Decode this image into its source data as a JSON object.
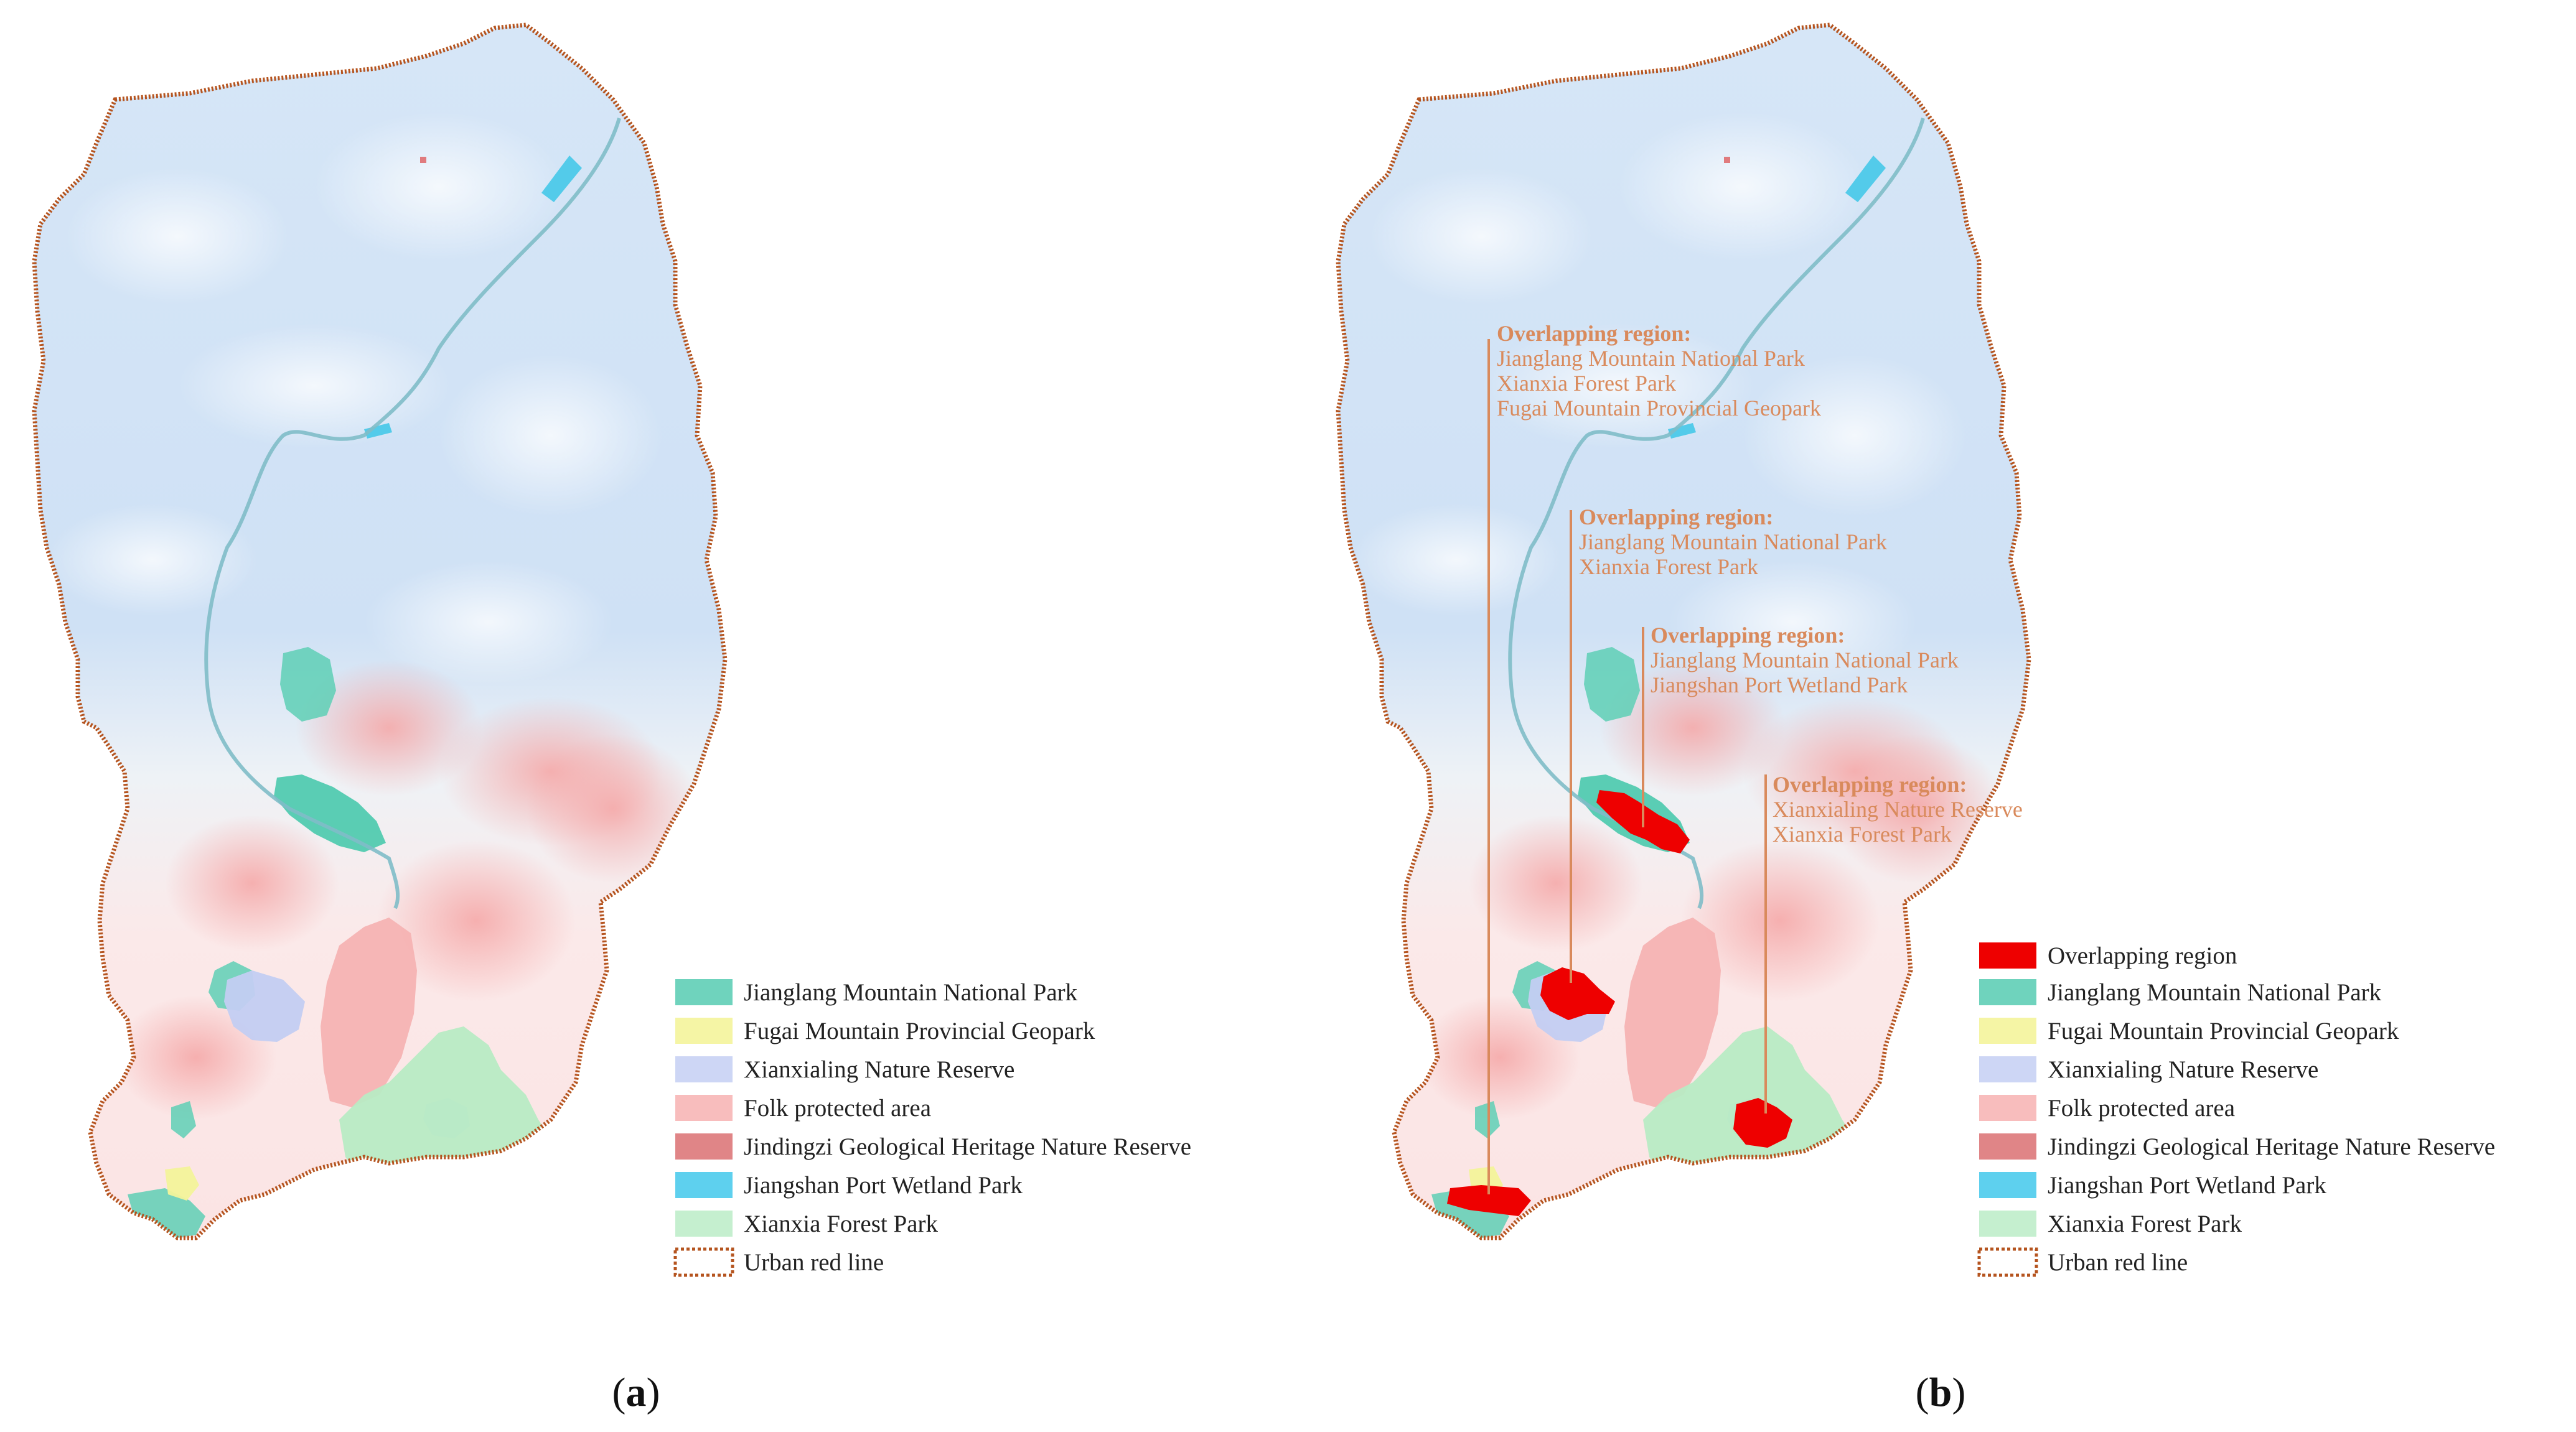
{
  "colors": {
    "boundary": "#b5541f",
    "river": "#7fbcc8",
    "relief_blue": "#cfe2f6",
    "relief_pink": "#f8c9c9",
    "jianglang": "#5ecfb5",
    "fugai": "#f3f39a",
    "xianxialing": "#c3cdf2",
    "folk": "#f6b3b3",
    "jindingzi": "#e07b7e",
    "jiangshan": "#45c8e8",
    "xianxia": "#b8ebc4",
    "overlap": "#ee0000",
    "annotation": "#d98a5c"
  },
  "legend_items": [
    {
      "key": "overlap",
      "label": "Overlapping region",
      "color": "#ee0000",
      "border": "none"
    },
    {
      "key": "jianglang",
      "label": "Jianglang Mountain National Park",
      "color": "#6fd3bd",
      "border": "none"
    },
    {
      "key": "fugai",
      "label": "Fugai Mountain Provincial Geopark",
      "color": "#f5f5a5",
      "border": "none"
    },
    {
      "key": "xianxialing",
      "label": "Xianxialing Nature Reserve",
      "color": "#cdd6f5",
      "border": "none"
    },
    {
      "key": "folk",
      "label": "Folk protected area",
      "color": "#f8bdbd",
      "border": "none"
    },
    {
      "key": "jindingzi",
      "label": "Jindingzi Geological Heritage Nature Reserve",
      "color": "#e08587",
      "border": "none"
    },
    {
      "key": "jiangshan",
      "label": "Jiangshan Port Wetland Park",
      "color": "#5ed0ee",
      "border": "none"
    },
    {
      "key": "xianxia",
      "label": "Xianxia Forest Park",
      "color": "#c5efcf",
      "border": "none"
    },
    {
      "key": "redline",
      "label": "Urban red line",
      "color": "#ffffff",
      "border": "dashed"
    }
  ],
  "annotations": [
    {
      "title": "Overlapping region:",
      "lines": [
        "Jianglang Mountain National Park",
        "Xianxia Forest Park",
        "Fugai Mountain Provincial Geopark"
      ]
    },
    {
      "title": "Overlapping region:",
      "lines": [
        "Jianglang Mountain National Park",
        "Xianxia Forest Park"
      ]
    },
    {
      "title": "Overlapping region:",
      "lines": [
        "Jianglang Mountain National Park",
        "Jiangshan Port Wetland Park"
      ]
    },
    {
      "title": "Overlapping region:",
      "lines": [
        "Xianxialing Nature Reserve",
        "Xianxia Forest Park"
      ]
    }
  ],
  "panels": [
    {
      "key": "a",
      "label": {
        "open": "(",
        "letter": "a",
        "close": ")"
      },
      "map_icon": "county-map-icon"
    },
    {
      "key": "b",
      "label": {
        "open": "(",
        "letter": "b",
        "close": ")"
      },
      "map_icon": "county-map-icon"
    }
  ]
}
